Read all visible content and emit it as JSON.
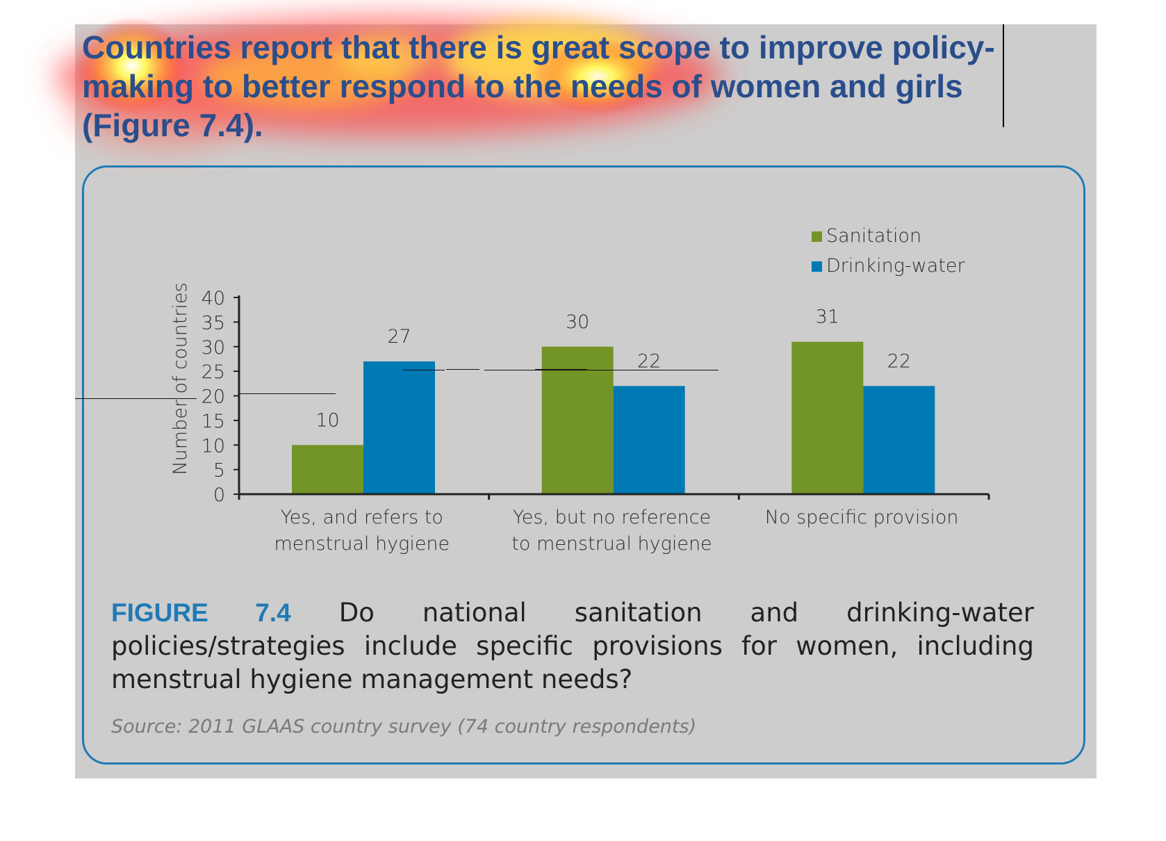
{
  "heading": "Countries report that there is great scope to improve policy-making to better respond to the needs of women and girls (Figure 7.4).",
  "colors": {
    "sanitation": "#739427",
    "drinking_water": "#0079b4",
    "heading": "#2a4e8c",
    "figure_label": "#1f7ab5"
  },
  "chart_data": {
    "type": "bar",
    "categories": [
      [
        "Yes, and refers to",
        "menstrual hygiene"
      ],
      [
        "Yes, but no reference",
        "to menstrual hygiene"
      ],
      [
        "No specific provision"
      ]
    ],
    "series": [
      {
        "name": "Sanitation",
        "values": [
          10,
          30,
          31
        ]
      },
      {
        "name": "Drinking-water",
        "values": [
          27,
          22,
          22
        ]
      }
    ],
    "ylabel": "Number of countries",
    "ylim": [
      0,
      40
    ],
    "yticks": [
      0,
      5,
      10,
      15,
      20,
      25,
      30,
      35,
      40
    ],
    "legend": "top-right",
    "grid": false
  },
  "figure": {
    "label": "FIGURE 7.4",
    "caption": "Do national sanitation and drinking-water policies/strategies include specific provisions for women, including menstrual hygiene management needs?",
    "source": "Source: 2011 GLAAS country survey (74 country respondents)"
  }
}
